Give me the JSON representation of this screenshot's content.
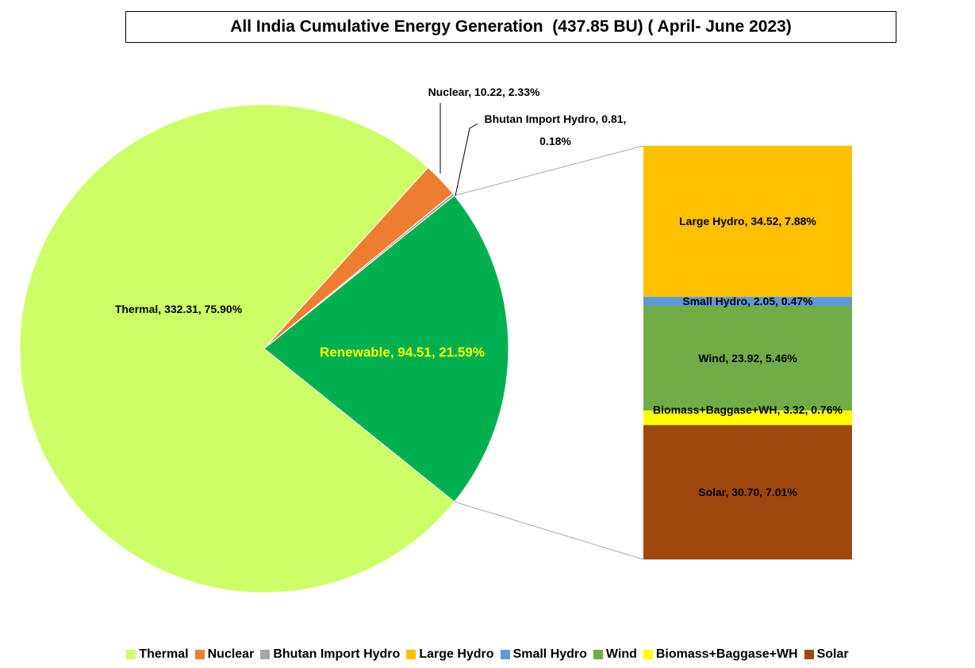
{
  "chart_data": {
    "type": "bar_of_pie",
    "title": "All India Cumulative Energy Generation  (437.85 BU) ( April- June 2023)",
    "pie": {
      "categories": [
        "Thermal",
        "Nuclear",
        "Bhutan Import Hydro",
        "Renewable"
      ],
      "values": [
        332.31,
        10.22,
        0.81,
        94.51
      ],
      "percentages": [
        75.9,
        2.33,
        0.18,
        21.59
      ],
      "value_labels": [
        "Thermal, 332.31, 75.90%",
        "Nuclear, 10.22, 2.33%",
        "Bhutan Import Hydro, 0.81, 0.18%",
        "Renewable, 94.51, 21.59%"
      ],
      "colors": [
        "#ccff66",
        "#ed7d31",
        "#a5a5a5",
        "#00b050"
      ]
    },
    "bar": {
      "categories": [
        "Large Hydro",
        "Small Hydro",
        "Wind",
        "Biomass+Baggase+WH",
        "Solar"
      ],
      "values": [
        34.52,
        2.05,
        23.92,
        3.32,
        30.7
      ],
      "percentages": [
        7.88,
        0.47,
        5.46,
        0.76,
        7.01
      ],
      "value_labels": [
        "Large Hydro, 34.52, 7.88%",
        "Small Hydro, 2.05, 0.47%",
        "Wind, 23.92, 5.46%",
        "Biomass+Baggase+WH, 3.32, 0.76%",
        "Solar, 30.70, 7.01%"
      ],
      "colors": [
        "#ffc000",
        "#5b9bd5",
        "#70ad47",
        "#ffff00",
        "#9e480e"
      ]
    },
    "legend": "bottom"
  }
}
